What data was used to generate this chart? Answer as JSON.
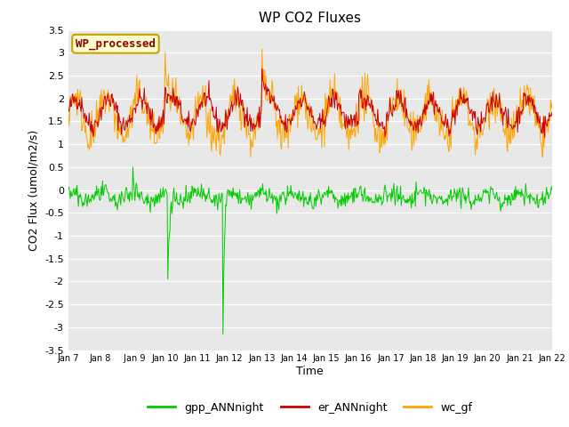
{
  "title": "WP CO2 Fluxes",
  "xlabel": "Time",
  "ylabel": "CO2 Flux (umol/m2/s)",
  "ylim": [
    -3.5,
    3.5
  ],
  "yticks": [
    -3.5,
    -3.0,
    -2.5,
    -2.0,
    -1.5,
    -1.0,
    -0.5,
    0.0,
    0.5,
    1.0,
    1.5,
    2.0,
    2.5,
    3.0,
    3.5
  ],
  "xlim_days": [
    0,
    15
  ],
  "xtick_labels": [
    "Jan 7",
    "Jan 8",
    " Jan 9",
    "Jan 10",
    "Jan 11",
    "Jan 12",
    "Jan 13",
    "Jan 14",
    "Jan 15",
    "Jan 16",
    "Jan 17",
    "Jan 18",
    "Jan 19",
    "Jan 20",
    "Jan 21",
    "Jan 22"
  ],
  "n_points": 720,
  "gpp_color": "#00CC00",
  "er_color": "#CC0000",
  "wc_color": "#FFA500",
  "annotation_text": "WP_processed",
  "annotation_text_color": "#8B0000",
  "annotation_bg": "#FFFFCC",
  "annotation_edge": "#C8A000",
  "bg_color": "#E8E8E8",
  "fig_bg": "#FFFFFF",
  "legend_labels": [
    "gpp_ANNnight",
    "er_ANNnight",
    "wc_gf"
  ],
  "legend_colors": [
    "#00CC00",
    "#CC0000",
    "#FFA500"
  ],
  "seed": 42
}
